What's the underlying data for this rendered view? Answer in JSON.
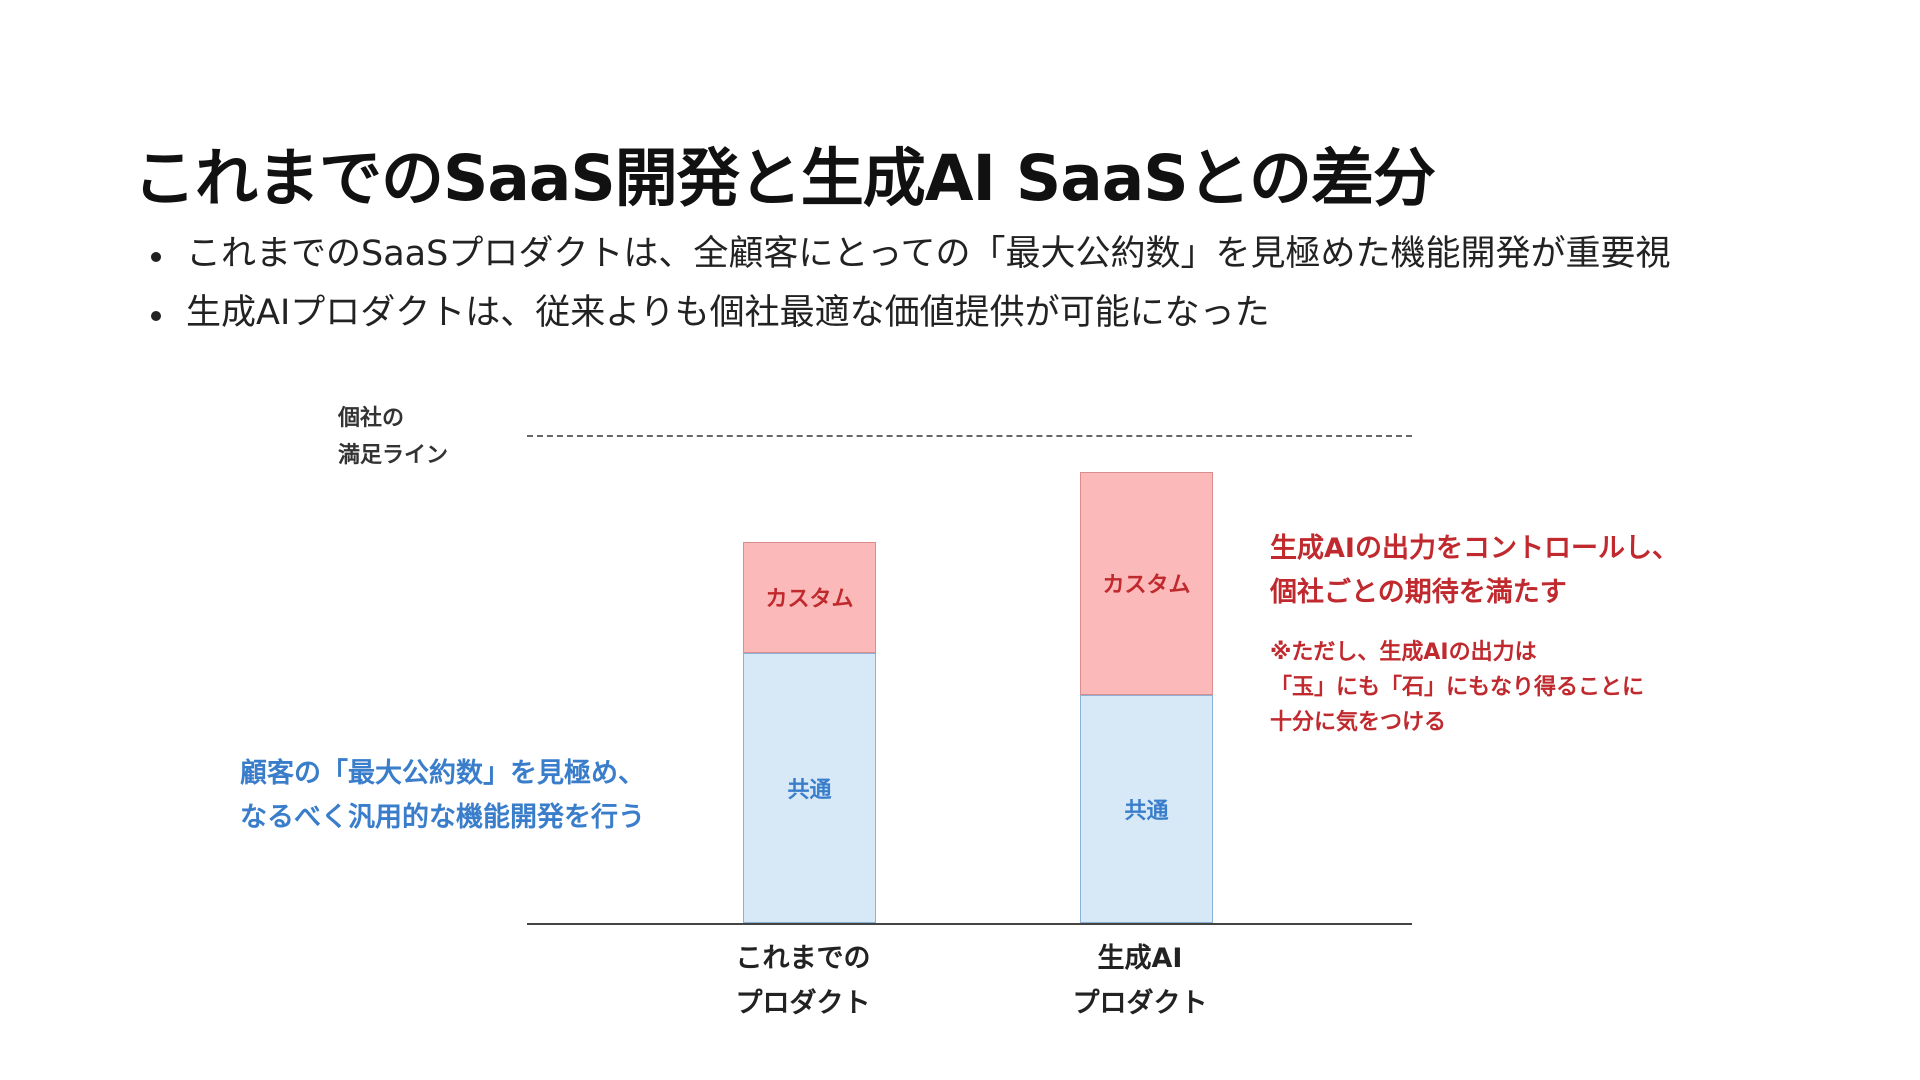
{
  "title": "これまでのSaaS開発と生成AI SaaSとの差分",
  "bullets": [
    "これまでのSaaSプロダクトは、全顧客にとっての「最大公約数」を見極めた機能開発が重要視",
    "生成AIプロダクトは、従来よりも個社最適な価値提供が可能になった"
  ],
  "diagram": {
    "satisfaction_line_label": [
      "個社の",
      "満足ライン"
    ],
    "products": [
      {
        "name_lines": [
          "これまでの",
          "プロダクト"
        ],
        "segments": [
          {
            "label": "カスタム",
            "share": 0.29
          },
          {
            "label": "共通",
            "share": 0.71
          }
        ],
        "height_ratio": 0.81
      },
      {
        "name_lines": [
          "生成AI",
          "プロダクト"
        ],
        "segments": [
          {
            "label": "カスタム",
            "share": 0.495
          },
          {
            "label": "共通",
            "share": 0.505
          }
        ],
        "height_ratio": 0.96
      }
    ],
    "annotation_left": [
      "顧客の「最大公約数」を見極め、",
      "なるべく汎用的な機能開発を行う"
    ],
    "annotation_right": [
      "生成AIの出力をコントロールし、",
      "個社ごとの期待を満たす"
    ],
    "annotation_note": [
      "※ただし、生成AIの出力は",
      "「玉」にも「石」にもなり得ることに",
      "十分に気をつける"
    ]
  },
  "colors": {
    "custom_fill": "#fcb9b9",
    "common_fill": "#d7e8f7",
    "accent_red": "#c0292d",
    "accent_blue": "#3a7ecb"
  }
}
